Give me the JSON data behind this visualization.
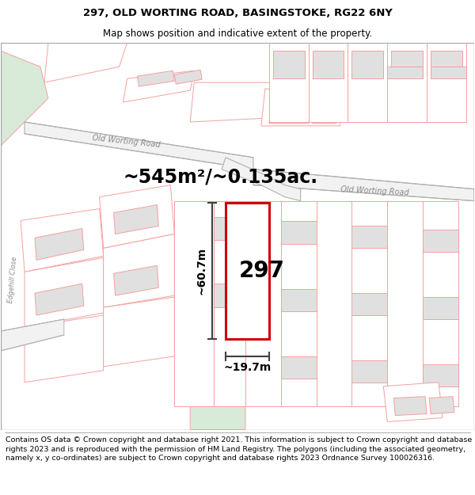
{
  "title": "297, OLD WORTING ROAD, BASINGSTOKE, RG22 6NY",
  "subtitle": "Map shows position and indicative extent of the property.",
  "footer": "Contains OS data © Crown copyright and database right 2021. This information is subject to Crown copyright and database rights 2023 and is reproduced with the permission of HM Land Registry. The polygons (including the associated geometry, namely x, y co-ordinates) are subject to Crown copyright and database rights 2023 Ordnance Survey 100026316.",
  "area_text": "~545m²/~0.135ac.",
  "label_297": "297",
  "dim_height": "~60.7m",
  "dim_width": "~19.7m",
  "road_label1": "Old Worting Road",
  "road_label2": "Old Worting Road",
  "road_color": "#b0b0b0",
  "plot_outline_color": "#cc0000",
  "land_outline_color": "#f5a0a0",
  "building_fill": "#e0e0e0",
  "green_fill": "#d8ead8",
  "dim_line_color": "#404040",
  "title_fontsize": 9.5,
  "subtitle_fontsize": 8.5,
  "footer_fontsize": 6.8,
  "area_fontsize": 17,
  "label_fontsize": 20,
  "dim_fontsize": 10,
  "road_label_fontsize": 7
}
